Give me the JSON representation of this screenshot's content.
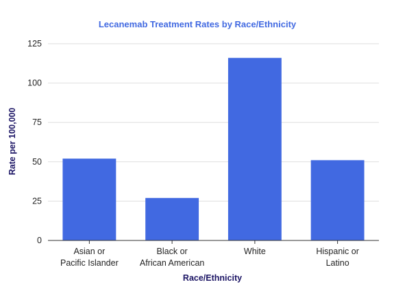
{
  "chart_data": {
    "type": "bar",
    "title": "Lecanemab Treatment Rates by Race/Ethnicity",
    "xlabel": "Race/Ethnicity",
    "ylabel": "Rate per 100,000",
    "categories": [
      [
        "Asian or",
        "Pacific Islander"
      ],
      [
        "Black or",
        "African American"
      ],
      [
        "White"
      ],
      [
        "Hispanic or",
        "Latino"
      ]
    ],
    "values": [
      52,
      27,
      116,
      51
    ],
    "ylim": [
      0,
      125
    ],
    "yticks": [
      "0",
      "25",
      "50",
      "75",
      "100",
      "125"
    ],
    "grid": true,
    "legend": "none",
    "colors": {
      "bar": "#4169E1",
      "title": "#4169E1",
      "axis_title": "#1B1464",
      "tick_label": "#222222",
      "grid": "#dddddd",
      "axis_line": "#333333"
    }
  }
}
